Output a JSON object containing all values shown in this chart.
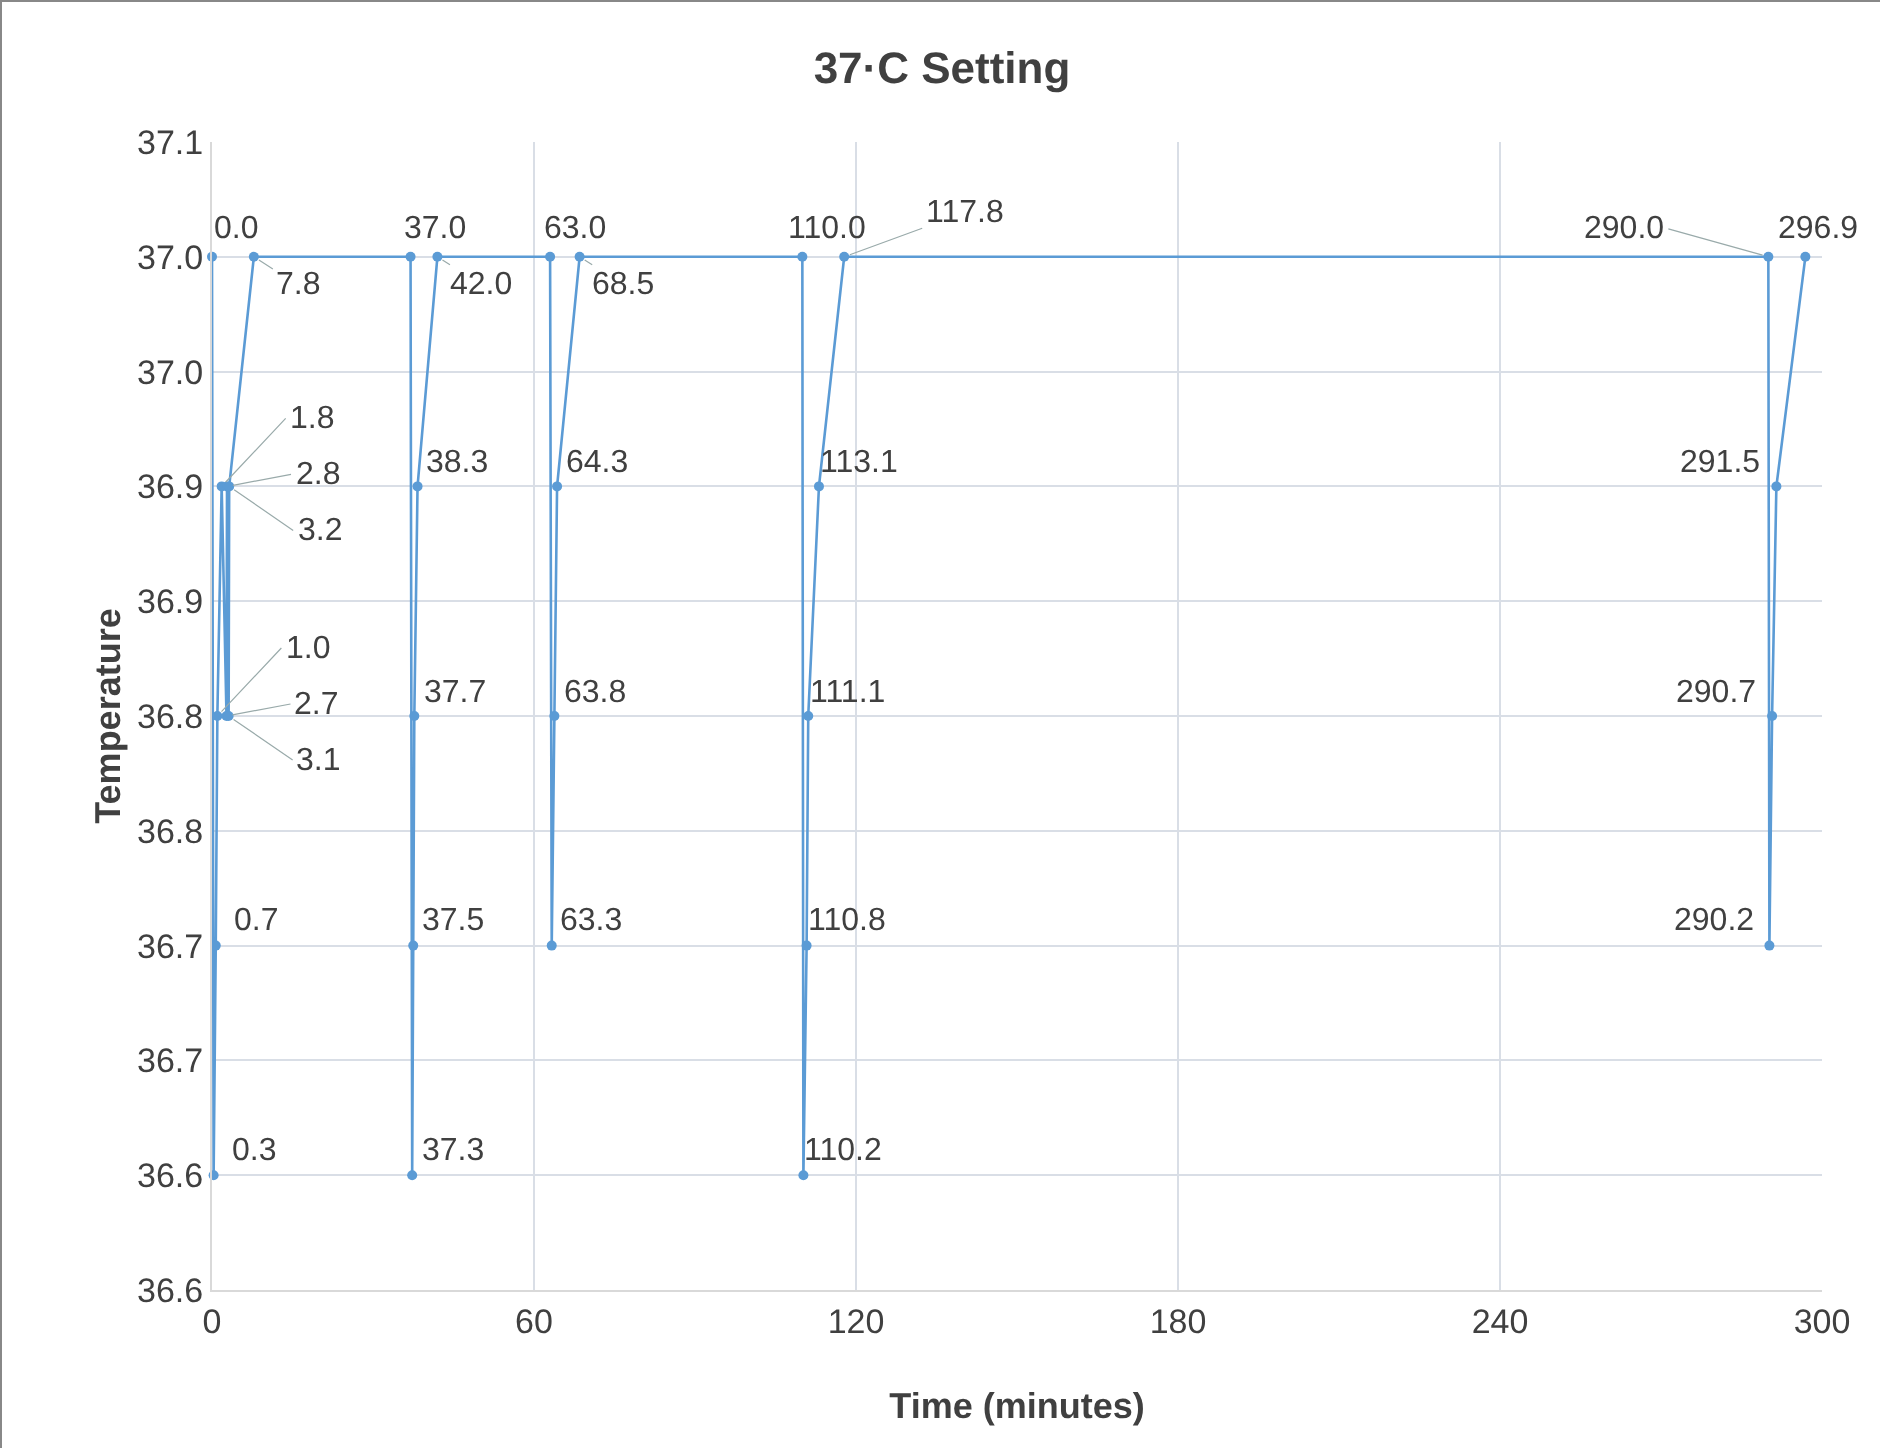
{
  "chart_data": {
    "type": "line",
    "title": "37·C Setting",
    "xlabel": "Time (minutes)",
    "ylabel": "Temperature",
    "x": [
      0.0,
      0.3,
      0.7,
      1.0,
      1.8,
      2.7,
      2.8,
      3.1,
      3.2,
      7.8,
      37.0,
      37.3,
      37.5,
      37.7,
      38.3,
      42.0,
      63.0,
      63.3,
      63.8,
      64.3,
      68.5,
      110.0,
      110.2,
      110.8,
      111.1,
      113.1,
      117.8,
      290.0,
      290.2,
      290.7,
      291.5,
      296.9
    ],
    "values": [
      37.0,
      36.6,
      36.7,
      36.8,
      36.9,
      36.8,
      36.9,
      36.8,
      36.9,
      37.0,
      37.0,
      36.6,
      36.7,
      36.8,
      36.9,
      37.0,
      37.0,
      36.7,
      36.8,
      36.9,
      37.0,
      37.0,
      36.6,
      36.7,
      36.8,
      36.9,
      37.0,
      37.0,
      36.7,
      36.8,
      36.9,
      37.0
    ],
    "annotations": [
      {
        "text": "0.0",
        "x": 0.0,
        "y": 37.0
      },
      {
        "text": "0.3",
        "x": 0.3,
        "y": 36.6
      },
      {
        "text": "0.7",
        "x": 0.7,
        "y": 36.7
      },
      {
        "text": "1.0",
        "x": 1.0,
        "y": 36.8
      },
      {
        "text": "1.8",
        "x": 1.8,
        "y": 36.9
      },
      {
        "text": "2.7",
        "x": 2.7,
        "y": 36.8
      },
      {
        "text": "2.8",
        "x": 2.8,
        "y": 36.9
      },
      {
        "text": "3.1",
        "x": 3.1,
        "y": 36.8
      },
      {
        "text": "3.2",
        "x": 3.2,
        "y": 36.9
      },
      {
        "text": "7.8",
        "x": 7.8,
        "y": 37.0
      },
      {
        "text": "37.0",
        "x": 37.0,
        "y": 37.0
      },
      {
        "text": "37.3",
        "x": 37.3,
        "y": 36.6
      },
      {
        "text": "37.5",
        "x": 37.5,
        "y": 36.7
      },
      {
        "text": "37.7",
        "x": 37.7,
        "y": 36.8
      },
      {
        "text": "38.3",
        "x": 38.3,
        "y": 36.9
      },
      {
        "text": "42.0",
        "x": 42.0,
        "y": 37.0
      },
      {
        "text": "63.0",
        "x": 63.0,
        "y": 37.0
      },
      {
        "text": "63.3",
        "x": 63.3,
        "y": 36.7
      },
      {
        "text": "63.8",
        "x": 63.8,
        "y": 36.8
      },
      {
        "text": "64.3",
        "x": 64.3,
        "y": 36.9
      },
      {
        "text": "68.5",
        "x": 68.5,
        "y": 37.0
      },
      {
        "text": "110.0",
        "x": 110.0,
        "y": 37.0
      },
      {
        "text": "110.2",
        "x": 110.2,
        "y": 36.6
      },
      {
        "text": "110.8",
        "x": 110.8,
        "y": 36.7
      },
      {
        "text": "111.1",
        "x": 111.1,
        "y": 36.8
      },
      {
        "text": "113.1",
        "x": 113.1,
        "y": 36.9
      },
      {
        "text": "117.8",
        "x": 117.8,
        "y": 37.0
      },
      {
        "text": "290.0",
        "x": 290.0,
        "y": 37.0
      },
      {
        "text": "290.2",
        "x": 290.2,
        "y": 36.7
      },
      {
        "text": "290.7",
        "x": 290.7,
        "y": 36.8
      },
      {
        "text": "291.5",
        "x": 291.5,
        "y": 36.9
      },
      {
        "text": "296.9",
        "x": 296.9,
        "y": 37.0
      }
    ],
    "color": "#5b9bd5",
    "marker": "circle",
    "line_style": "solid",
    "grid": true,
    "legend": false,
    "xlim": [
      0,
      300
    ],
    "xticks": [
      0,
      60,
      120,
      180,
      240,
      300
    ],
    "ylim": [
      36.55,
      37.05
    ],
    "yticks": [
      {
        "value": 36.55,
        "label": "36.6"
      },
      {
        "value": 36.6,
        "label": "36.6"
      },
      {
        "value": 36.65,
        "label": "36.7"
      },
      {
        "value": 36.7,
        "label": "36.7"
      },
      {
        "value": 36.75,
        "label": "36.8"
      },
      {
        "value": 36.8,
        "label": "36.8"
      },
      {
        "value": 36.85,
        "label": "36.9"
      },
      {
        "value": 36.9,
        "label": "36.9"
      },
      {
        "value": 36.95,
        "label": "37.0"
      },
      {
        "value": 37.0,
        "label": "37.0"
      },
      {
        "value": 37.05,
        "label": "37.1"
      }
    ]
  }
}
